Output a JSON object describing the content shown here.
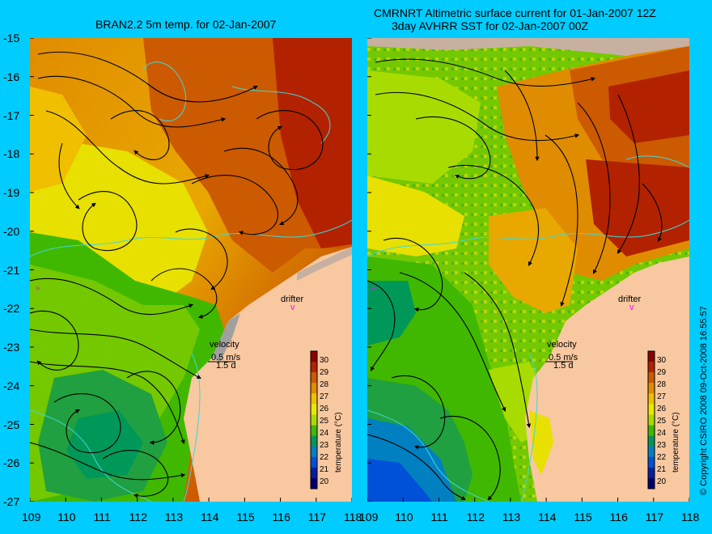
{
  "panels": [
    {
      "title": "BRAN2.2 5m temp. for 02-Jan-2007",
      "velocity_label": "velocity",
      "velocity_scale": "0.5 m/s",
      "velocity_time": "1.5 d",
      "drifter_label": "drifter",
      "colorbar_label": "temperature (°C)"
    },
    {
      "title_line1": "CMRNRT Altimetric surface current for 01-Jan-2007 12Z",
      "title_line2": "3day AVHRR SST for 02-Jan-2007 00Z",
      "velocity_label": "velocity",
      "velocity_scale": "0.5 m/s",
      "velocity_time": "1.5 d",
      "drifter_label": "drifter",
      "colorbar_label": "temperature (°C)"
    }
  ],
  "axes": {
    "lat_ticks": [
      "-15",
      "-16",
      "-17",
      "-18",
      "-19",
      "-20",
      "-21",
      "-22",
      "-23",
      "-24",
      "-25",
      "-26",
      "-27"
    ],
    "lon_ticks": [
      "109",
      "110",
      "111",
      "112",
      "113",
      "114",
      "115",
      "116",
      "117",
      "118"
    ]
  },
  "colorbar": {
    "ticks": [
      "30",
      "29",
      "28",
      "27",
      "26",
      "25",
      "24",
      "23",
      "22",
      "21",
      "20"
    ],
    "colors": [
      "#8b0000",
      "#b22200",
      "#cc5a00",
      "#e08c00",
      "#f0c000",
      "#e8e800",
      "#a8dc00",
      "#40b800",
      "#009858",
      "#0080c0",
      "#0050d8",
      "#0020a0",
      "#000070"
    ]
  },
  "copyright": "© Copyright CSIRO 2008   09-Oct-2008 16:55:57",
  "colors": {
    "background": "#00ccff",
    "land": "#f8c8a0",
    "bathymetry": "#40d8d8",
    "drifter": "#ff00ff"
  }
}
